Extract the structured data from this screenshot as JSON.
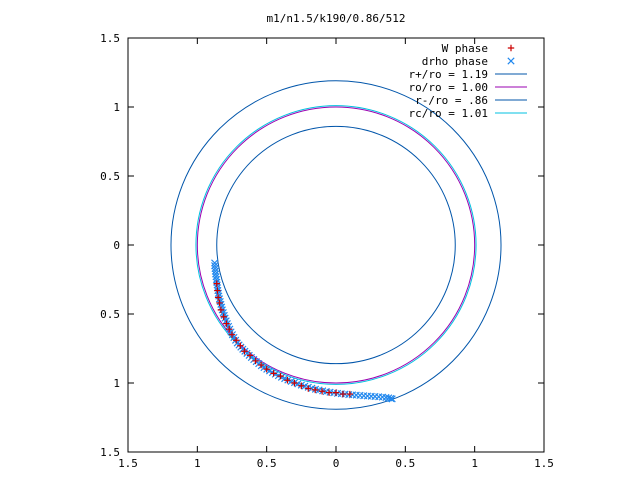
{
  "chart_data": {
    "type": "scatter",
    "title": "m1/n1.5/k190/0.86/512",
    "xlabel": "",
    "ylabel": "",
    "xlim": [
      -1.5,
      1.5
    ],
    "ylim": [
      -1.5,
      1.5
    ],
    "x_ticks": [
      -1.5,
      -1,
      -0.5,
      0,
      0.5,
      1,
      1.5
    ],
    "y_ticks": [
      -1.5,
      -1,
      -0.5,
      0,
      0.5,
      1,
      1.5
    ],
    "x_tick_labels": [
      "1.5",
      "1",
      "0.5",
      "0",
      "0.5",
      "1",
      "1.5"
    ],
    "y_tick_labels": [
      "1.5",
      "1",
      "0.5",
      "0",
      "0.5",
      "1",
      "1.5"
    ],
    "grid": false,
    "legend_position": "top-right",
    "circles": [
      {
        "name": "r+/ro = 1.19",
        "radius": 1.19,
        "color": "#0055aa"
      },
      {
        "name": "ro/ro = 1.00",
        "radius": 1.0,
        "color": "#9a00b0"
      },
      {
        "name": "r-/ro = .86",
        "radius": 0.86,
        "color": "#0055aa"
      },
      {
        "name": "rc/ro = 1.01",
        "radius": 1.01,
        "color": "#00c0e0"
      }
    ],
    "series": [
      {
        "name": "W phase",
        "marker": "+",
        "color": "#cc0000",
        "points": [
          [
            -0.86,
            -0.28
          ],
          [
            -0.855,
            -0.33
          ],
          [
            -0.85,
            -0.38
          ],
          [
            -0.84,
            -0.42
          ],
          [
            -0.83,
            -0.47
          ],
          [
            -0.81,
            -0.52
          ],
          [
            -0.79,
            -0.57
          ],
          [
            -0.77,
            -0.61
          ],
          [
            -0.75,
            -0.65
          ],
          [
            -0.72,
            -0.69
          ],
          [
            -0.69,
            -0.73
          ],
          [
            -0.66,
            -0.77
          ],
          [
            -0.62,
            -0.8
          ],
          [
            -0.58,
            -0.84
          ],
          [
            -0.54,
            -0.87
          ],
          [
            -0.5,
            -0.9
          ],
          [
            -0.45,
            -0.93
          ],
          [
            -0.4,
            -0.95
          ],
          [
            -0.35,
            -0.98
          ],
          [
            -0.3,
            -1.0
          ],
          [
            -0.25,
            -1.02
          ],
          [
            -0.2,
            -1.04
          ],
          [
            -0.15,
            -1.05
          ],
          [
            -0.1,
            -1.06
          ],
          [
            -0.05,
            -1.07
          ],
          [
            0.0,
            -1.07
          ],
          [
            0.05,
            -1.08
          ],
          [
            0.1,
            -1.08
          ]
        ]
      },
      {
        "name": "drho phase",
        "marker": "x",
        "color": "#2288ee",
        "points": [
          [
            -0.875,
            -0.13
          ],
          [
            -0.875,
            -0.15
          ],
          [
            -0.872,
            -0.17
          ],
          [
            -0.87,
            -0.19
          ],
          [
            -0.868,
            -0.21
          ],
          [
            -0.865,
            -0.23
          ],
          [
            -0.862,
            -0.25
          ],
          [
            -0.86,
            -0.27
          ],
          [
            -0.857,
            -0.29
          ],
          [
            -0.855,
            -0.31
          ],
          [
            -0.852,
            -0.33
          ],
          [
            -0.848,
            -0.35
          ],
          [
            -0.845,
            -0.37
          ],
          [
            -0.84,
            -0.39
          ],
          [
            -0.835,
            -0.41
          ],
          [
            -0.83,
            -0.43
          ],
          [
            -0.825,
            -0.45
          ],
          [
            -0.82,
            -0.47
          ],
          [
            -0.813,
            -0.49
          ],
          [
            -0.806,
            -0.51
          ],
          [
            -0.8,
            -0.53
          ],
          [
            -0.792,
            -0.55
          ],
          [
            -0.784,
            -0.57
          ],
          [
            -0.775,
            -0.59
          ],
          [
            -0.766,
            -0.61
          ],
          [
            -0.757,
            -0.63
          ],
          [
            -0.747,
            -0.65
          ],
          [
            -0.736,
            -0.67
          ],
          [
            -0.724,
            -0.69
          ],
          [
            -0.712,
            -0.71
          ],
          [
            -0.699,
            -0.725
          ],
          [
            -0.686,
            -0.74
          ],
          [
            -0.672,
            -0.755
          ],
          [
            -0.657,
            -0.77
          ],
          [
            -0.642,
            -0.785
          ],
          [
            -0.626,
            -0.8
          ],
          [
            -0.61,
            -0.815
          ],
          [
            -0.593,
            -0.83
          ],
          [
            -0.575,
            -0.845
          ],
          [
            -0.557,
            -0.86
          ],
          [
            -0.538,
            -0.875
          ],
          [
            -0.519,
            -0.888
          ],
          [
            -0.499,
            -0.9
          ],
          [
            -0.479,
            -0.912
          ],
          [
            -0.458,
            -0.924
          ],
          [
            -0.437,
            -0.936
          ],
          [
            -0.415,
            -0.947
          ],
          [
            -0.393,
            -0.958
          ],
          [
            -0.37,
            -0.968
          ],
          [
            -0.347,
            -0.978
          ],
          [
            -0.323,
            -0.988
          ],
          [
            -0.299,
            -0.997
          ],
          [
            -0.275,
            -1.006
          ],
          [
            -0.25,
            -1.015
          ],
          [
            -0.225,
            -1.023
          ],
          [
            -0.2,
            -1.031
          ],
          [
            -0.174,
            -1.038
          ],
          [
            -0.148,
            -1.045
          ],
          [
            -0.122,
            -1.051
          ],
          [
            -0.096,
            -1.057
          ],
          [
            -0.07,
            -1.062
          ],
          [
            -0.043,
            -1.067
          ],
          [
            -0.016,
            -1.071
          ],
          [
            0.011,
            -1.075
          ],
          [
            0.038,
            -1.078
          ],
          [
            0.065,
            -1.081
          ],
          [
            0.092,
            -1.084
          ],
          [
            0.119,
            -1.086
          ],
          [
            0.146,
            -1.088
          ],
          [
            0.173,
            -1.09
          ],
          [
            0.2,
            -1.092
          ],
          [
            0.227,
            -1.094
          ],
          [
            0.254,
            -1.096
          ],
          [
            0.281,
            -1.098
          ],
          [
            0.308,
            -1.1
          ],
          [
            0.335,
            -1.102
          ],
          [
            0.36,
            -1.105
          ],
          [
            0.38,
            -1.108
          ],
          [
            0.395,
            -1.112
          ],
          [
            0.405,
            -1.115
          ]
        ]
      }
    ]
  }
}
